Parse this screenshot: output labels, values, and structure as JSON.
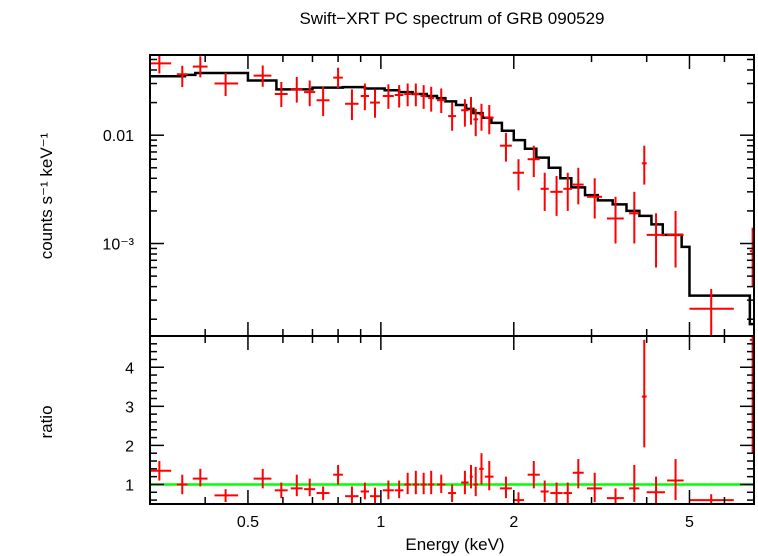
{
  "chart_data": [
    {
      "type": "scatter",
      "title": "Swift−XRT PC spectrum of GRB 090529",
      "ylabel": "counts s⁻¹ keV⁻¹",
      "xlabel": "",
      "xscale": "log",
      "yscale": "log",
      "xlim": [
        0.3,
        7.0
      ],
      "ylim": [
        0.00014,
        0.055
      ],
      "yticks": [
        {
          "value": 0.01,
          "label": "0.01"
        },
        {
          "value": 0.001,
          "label": "10⁻³"
        }
      ],
      "colors": {
        "data": "#ff0000",
        "model": "#000000"
      },
      "series": [
        {
          "kind": "data",
          "points": [
            {
              "x": 0.315,
              "xlo": 0.3,
              "xhi": 0.335,
              "y": 0.046,
              "ylo": 0.0372,
              "yhi": 0.0545
            },
            {
              "x": 0.355,
              "xlo": 0.345,
              "xhi": 0.365,
              "y": 0.0365,
              "ylo": 0.0278,
              "yhi": 0.0437
            },
            {
              "x": 0.39,
              "xlo": 0.375,
              "xhi": 0.405,
              "y": 0.043,
              "ylo": 0.0342,
              "yhi": 0.0535
            },
            {
              "x": 0.445,
              "xlo": 0.42,
              "xhi": 0.475,
              "y": 0.03,
              "ylo": 0.023,
              "yhi": 0.0375
            },
            {
              "x": 0.54,
              "xlo": 0.515,
              "xhi": 0.565,
              "y": 0.0355,
              "ylo": 0.028,
              "yhi": 0.044
            },
            {
              "x": 0.595,
              "xlo": 0.575,
              "xhi": 0.615,
              "y": 0.024,
              "ylo": 0.0182,
              "yhi": 0.031
            },
            {
              "x": 0.645,
              "xlo": 0.625,
              "xhi": 0.665,
              "y": 0.0265,
              "ylo": 0.02,
              "yhi": 0.0345
            },
            {
              "x": 0.69,
              "xlo": 0.67,
              "xhi": 0.71,
              "y": 0.025,
              "ylo": 0.0185,
              "yhi": 0.032
            },
            {
              "x": 0.74,
              "xlo": 0.715,
              "xhi": 0.765,
              "y": 0.021,
              "ylo": 0.015,
              "yhi": 0.028
            },
            {
              "x": 0.8,
              "xlo": 0.78,
              "xhi": 0.82,
              "y": 0.034,
              "ylo": 0.0272,
              "yhi": 0.042
            },
            {
              "x": 0.86,
              "xlo": 0.83,
              "xhi": 0.89,
              "y": 0.0195,
              "ylo": 0.0138,
              "yhi": 0.0265
            },
            {
              "x": 0.92,
              "xlo": 0.9,
              "xhi": 0.94,
              "y": 0.023,
              "ylo": 0.017,
              "yhi": 0.03
            },
            {
              "x": 0.97,
              "xlo": 0.945,
              "xhi": 0.995,
              "y": 0.02,
              "ylo": 0.0145,
              "yhi": 0.0265
            },
            {
              "x": 1.04,
              "xlo": 1.01,
              "xhi": 1.07,
              "y": 0.023,
              "ylo": 0.0175,
              "yhi": 0.0295
            },
            {
              "x": 1.1,
              "xlo": 1.075,
              "xhi": 1.125,
              "y": 0.0235,
              "ylo": 0.018,
              "yhi": 0.029
            },
            {
              "x": 1.15,
              "xlo": 1.13,
              "xhi": 1.17,
              "y": 0.024,
              "ylo": 0.0185,
              "yhi": 0.03
            },
            {
              "x": 1.2,
              "xlo": 1.18,
              "xhi": 1.22,
              "y": 0.024,
              "ylo": 0.0185,
              "yhi": 0.03
            },
            {
              "x": 1.25,
              "xlo": 1.23,
              "xhi": 1.27,
              "y": 0.023,
              "ylo": 0.0175,
              "yhi": 0.029
            },
            {
              "x": 1.3,
              "xlo": 1.28,
              "xhi": 1.32,
              "y": 0.022,
              "ylo": 0.0165,
              "yhi": 0.028
            },
            {
              "x": 1.37,
              "xlo": 1.34,
              "xhi": 1.4,
              "y": 0.021,
              "ylo": 0.016,
              "yhi": 0.027
            },
            {
              "x": 1.45,
              "xlo": 1.42,
              "xhi": 1.48,
              "y": 0.015,
              "ylo": 0.011,
              "yhi": 0.02
            },
            {
              "x": 1.55,
              "xlo": 1.52,
              "xhi": 1.58,
              "y": 0.017,
              "ylo": 0.012,
              "yhi": 0.0215
            },
            {
              "x": 1.6,
              "xlo": 1.59,
              "xhi": 1.615,
              "y": 0.0175,
              "ylo": 0.0125,
              "yhi": 0.0225
            },
            {
              "x": 1.64,
              "xlo": 1.62,
              "xhi": 1.66,
              "y": 0.014,
              "ylo": 0.0098,
              "yhi": 0.0175
            },
            {
              "x": 1.69,
              "xlo": 1.67,
              "xhi": 1.71,
              "y": 0.0155,
              "ylo": 0.011,
              "yhi": 0.0195
            },
            {
              "x": 1.76,
              "xlo": 1.72,
              "xhi": 1.8,
              "y": 0.0145,
              "ylo": 0.0102,
              "yhi": 0.019
            },
            {
              "x": 1.92,
              "xlo": 1.86,
              "xhi": 1.98,
              "y": 0.008,
              "ylo": 0.0057,
              "yhi": 0.0105
            },
            {
              "x": 2.05,
              "xlo": 1.99,
              "xhi": 2.11,
              "y": 0.0045,
              "ylo": 0.0031,
              "yhi": 0.006
            },
            {
              "x": 2.22,
              "xlo": 2.15,
              "xhi": 2.29,
              "y": 0.006,
              "ylo": 0.0041,
              "yhi": 0.008
            },
            {
              "x": 2.35,
              "xlo": 2.3,
              "xhi": 2.4,
              "y": 0.0032,
              "ylo": 0.002,
              "yhi": 0.0045
            },
            {
              "x": 2.5,
              "xlo": 2.42,
              "xhi": 2.58,
              "y": 0.003,
              "ylo": 0.0018,
              "yhi": 0.0042
            },
            {
              "x": 2.65,
              "xlo": 2.59,
              "xhi": 2.71,
              "y": 0.0032,
              "ylo": 0.002,
              "yhi": 0.0045
            },
            {
              "x": 2.8,
              "xlo": 2.72,
              "xhi": 2.88,
              "y": 0.0035,
              "ylo": 0.0023,
              "yhi": 0.005
            },
            {
              "x": 3.05,
              "xlo": 2.93,
              "xhi": 3.17,
              "y": 0.0027,
              "ylo": 0.0017,
              "yhi": 0.004
            },
            {
              "x": 3.4,
              "xlo": 3.25,
              "xhi": 3.55,
              "y": 0.0017,
              "ylo": 0.001,
              "yhi": 0.0027
            },
            {
              "x": 3.75,
              "xlo": 3.65,
              "xhi": 3.85,
              "y": 0.0019,
              "ylo": 0.001,
              "yhi": 0.003
            },
            {
              "x": 3.95,
              "xlo": 3.9,
              "xhi": 4.0,
              "y": 0.0055,
              "ylo": 0.0035,
              "yhi": 0.008
            },
            {
              "x": 4.2,
              "xlo": 4.0,
              "xhi": 4.4,
              "y": 0.0012,
              "ylo": 0.0006,
              "yhi": 0.0019
            },
            {
              "x": 4.65,
              "xlo": 4.45,
              "xhi": 4.85,
              "y": 0.0012,
              "ylo": 0.0006,
              "yhi": 0.002
            },
            {
              "x": 5.6,
              "xlo": 5.0,
              "xhi": 6.3,
              "y": 0.00025,
              "ylo": 0.00014,
              "yhi": 0.00038
            },
            {
              "x": 6.95,
              "xlo": 6.85,
              "xhi": 7.0,
              "y": 0.00085,
              "ylo": 0.0004,
              "yhi": 0.0014
            }
          ]
        },
        {
          "kind": "model",
          "x": [
            0.3,
            0.34,
            0.36,
            0.38,
            0.42,
            0.5,
            0.58,
            0.7,
            0.82,
            0.92,
            1.02,
            1.1,
            1.18,
            1.27,
            1.34,
            1.4,
            1.48,
            1.56,
            1.62,
            1.7,
            1.78,
            1.88,
            2.0,
            2.12,
            2.25,
            2.4,
            2.55,
            2.7,
            2.9,
            3.1,
            3.35,
            3.6,
            3.85,
            4.1,
            4.35,
            4.8,
            5.0,
            6.85,
            7.0
          ],
          "y": [
            0.035,
            0.035,
            0.036,
            0.0375,
            0.0375,
            0.032,
            0.0265,
            0.0275,
            0.0278,
            0.027,
            0.026,
            0.025,
            0.024,
            0.023,
            0.022,
            0.0205,
            0.019,
            0.0175,
            0.016,
            0.0145,
            0.013,
            0.011,
            0.009,
            0.0075,
            0.0062,
            0.005,
            0.004,
            0.0033,
            0.0028,
            0.0025,
            0.0023,
            0.002,
            0.0018,
            0.0015,
            0.0012,
            0.00093,
            0.00033,
            0.00018,
            0.00018
          ]
        }
      ]
    },
    {
      "type": "scatter",
      "xlabel": "Energy (keV)",
      "ylabel": "ratio",
      "xscale": "log",
      "xlim": [
        0.3,
        7.0
      ],
      "ylim": [
        0.5,
        4.8
      ],
      "yticks": [
        1,
        2,
        3,
        4
      ],
      "xticks": [
        {
          "value": 0.5,
          "label": "0.5"
        },
        {
          "value": 1,
          "label": "1"
        },
        {
          "value": 2,
          "label": "2"
        },
        {
          "value": 5,
          "label": "5"
        }
      ],
      "colors": {
        "data": "#ff0000",
        "reference": "#00ff00"
      },
      "reference_line": 1,
      "series": [
        {
          "kind": "data",
          "points": [
            {
              "x": 0.315,
              "xlo": 0.3,
              "xhi": 0.335,
              "y": 1.35,
              "ylo": 1.1,
              "yhi": 1.6
            },
            {
              "x": 0.355,
              "xlo": 0.345,
              "xhi": 0.365,
              "y": 1.0,
              "ylo": 0.75,
              "yhi": 1.25
            },
            {
              "x": 0.39,
              "xlo": 0.375,
              "xhi": 0.405,
              "y": 1.15,
              "ylo": 0.95,
              "yhi": 1.4
            },
            {
              "x": 0.445,
              "xlo": 0.42,
              "xhi": 0.475,
              "y": 0.72,
              "ylo": 0.55,
              "yhi": 0.88
            },
            {
              "x": 0.54,
              "xlo": 0.515,
              "xhi": 0.565,
              "y": 1.15,
              "ylo": 0.9,
              "yhi": 1.4
            },
            {
              "x": 0.595,
              "xlo": 0.575,
              "xhi": 0.615,
              "y": 0.85,
              "ylo": 0.65,
              "yhi": 1.05
            },
            {
              "x": 0.645,
              "xlo": 0.625,
              "xhi": 0.665,
              "y": 0.9,
              "ylo": 0.7,
              "yhi": 1.25
            },
            {
              "x": 0.69,
              "xlo": 0.67,
              "xhi": 0.71,
              "y": 0.88,
              "ylo": 0.7,
              "yhi": 1.15
            },
            {
              "x": 0.74,
              "xlo": 0.715,
              "xhi": 0.765,
              "y": 0.78,
              "ylo": 0.6,
              "yhi": 0.95
            },
            {
              "x": 0.8,
              "xlo": 0.78,
              "xhi": 0.82,
              "y": 1.25,
              "ylo": 1.0,
              "yhi": 1.5
            },
            {
              "x": 0.86,
              "xlo": 0.83,
              "xhi": 0.89,
              "y": 0.7,
              "ylo": 0.5,
              "yhi": 0.95
            },
            {
              "x": 0.92,
              "xlo": 0.9,
              "xhi": 0.94,
              "y": 0.82,
              "ylo": 0.62,
              "yhi": 1.05
            },
            {
              "x": 0.97,
              "xlo": 0.945,
              "xhi": 0.995,
              "y": 0.7,
              "ylo": 0.52,
              "yhi": 0.92
            },
            {
              "x": 1.04,
              "xlo": 1.01,
              "xhi": 1.07,
              "y": 0.85,
              "ylo": 0.62,
              "yhi": 1.1
            },
            {
              "x": 1.1,
              "xlo": 1.075,
              "xhi": 1.125,
              "y": 0.85,
              "ylo": 0.65,
              "yhi": 1.1
            },
            {
              "x": 1.15,
              "xlo": 1.13,
              "xhi": 1.17,
              "y": 1.0,
              "ylo": 0.75,
              "yhi": 1.3
            },
            {
              "x": 1.2,
              "xlo": 1.18,
              "xhi": 1.22,
              "y": 1.0,
              "ylo": 0.75,
              "yhi": 1.35
            },
            {
              "x": 1.25,
              "xlo": 1.23,
              "xhi": 1.27,
              "y": 1.0,
              "ylo": 0.75,
              "yhi": 1.3
            },
            {
              "x": 1.3,
              "xlo": 1.28,
              "xhi": 1.32,
              "y": 1.0,
              "ylo": 0.75,
              "yhi": 1.35
            },
            {
              "x": 1.37,
              "xlo": 1.34,
              "xhi": 1.4,
              "y": 1.0,
              "ylo": 0.78,
              "yhi": 1.25
            },
            {
              "x": 1.45,
              "xlo": 1.42,
              "xhi": 1.48,
              "y": 0.78,
              "ylo": 0.55,
              "yhi": 1.0
            },
            {
              "x": 1.55,
              "xlo": 1.52,
              "xhi": 1.58,
              "y": 1.05,
              "ylo": 0.75,
              "yhi": 1.35
            },
            {
              "x": 1.6,
              "xlo": 1.59,
              "xhi": 1.615,
              "y": 1.2,
              "ylo": 0.9,
              "yhi": 1.5
            },
            {
              "x": 1.64,
              "xlo": 1.62,
              "xhi": 1.66,
              "y": 1.0,
              "ylo": 0.7,
              "yhi": 1.45
            },
            {
              "x": 1.69,
              "xlo": 1.67,
              "xhi": 1.71,
              "y": 1.4,
              "ylo": 1.0,
              "yhi": 1.8
            },
            {
              "x": 1.76,
              "xlo": 1.72,
              "xhi": 1.8,
              "y": 1.2,
              "ylo": 0.85,
              "yhi": 1.6
            },
            {
              "x": 1.92,
              "xlo": 1.86,
              "xhi": 1.98,
              "y": 0.9,
              "ylo": 0.65,
              "yhi": 1.2
            },
            {
              "x": 2.05,
              "xlo": 1.99,
              "xhi": 2.11,
              "y": 0.6,
              "ylo": 0.45,
              "yhi": 0.8
            },
            {
              "x": 2.22,
              "xlo": 2.15,
              "xhi": 2.29,
              "y": 1.25,
              "ylo": 0.9,
              "yhi": 1.6
            },
            {
              "x": 2.35,
              "xlo": 2.3,
              "xhi": 2.4,
              "y": 0.82,
              "ylo": 0.55,
              "yhi": 1.1
            },
            {
              "x": 2.5,
              "xlo": 2.42,
              "xhi": 2.58,
              "y": 0.78,
              "ylo": 0.5,
              "yhi": 1.05
            },
            {
              "x": 2.65,
              "xlo": 2.59,
              "xhi": 2.71,
              "y": 0.78,
              "ylo": 0.52,
              "yhi": 1.05
            },
            {
              "x": 2.8,
              "xlo": 2.72,
              "xhi": 2.88,
              "y": 1.3,
              "ylo": 0.9,
              "yhi": 1.65
            },
            {
              "x": 3.05,
              "xlo": 2.93,
              "xhi": 3.17,
              "y": 0.9,
              "ylo": 0.55,
              "yhi": 1.3
            },
            {
              "x": 3.4,
              "xlo": 3.25,
              "xhi": 3.55,
              "y": 0.65,
              "ylo": 0.45,
              "yhi": 0.9
            },
            {
              "x": 3.75,
              "xlo": 3.65,
              "xhi": 3.85,
              "y": 0.9,
              "ylo": 0.55,
              "yhi": 1.5
            },
            {
              "x": 3.95,
              "xlo": 3.9,
              "xhi": 4.0,
              "y": 3.25,
              "ylo": 1.95,
              "yhi": 4.7
            },
            {
              "x": 4.2,
              "xlo": 4.0,
              "xhi": 4.4,
              "y": 0.8,
              "ylo": 0.45,
              "yhi": 1.2
            },
            {
              "x": 4.65,
              "xlo": 4.45,
              "xhi": 4.85,
              "y": 1.1,
              "ylo": 0.6,
              "yhi": 1.65
            },
            {
              "x": 5.6,
              "xlo": 5.0,
              "xhi": 6.3,
              "y": 0.6,
              "ylo": 0.45,
              "yhi": 0.75
            },
            {
              "x": 6.95,
              "xlo": 6.85,
              "xhi": 7.0,
              "y": 4.7,
              "ylo": 1.8,
              "yhi": 4.8
            }
          ]
        }
      ]
    }
  ]
}
